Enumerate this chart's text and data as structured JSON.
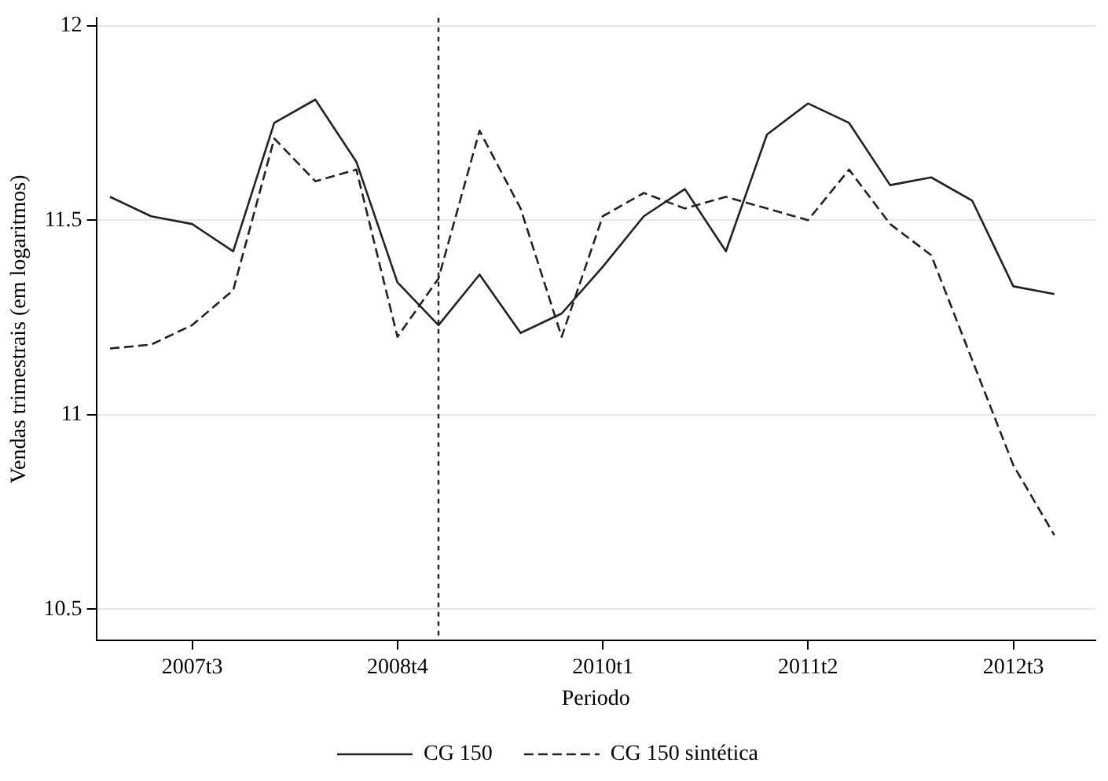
{
  "chart_data": {
    "type": "line",
    "xlabel": "Periodo",
    "ylabel": "Vendas trimestrais (em logaritmos)",
    "x": [
      "2007-01",
      "2007-04",
      "2007-07",
      "2007-10",
      "2008-01",
      "2008-04",
      "2008-07",
      "2008-10",
      "2009-01",
      "2009-04",
      "2009-07",
      "2009-10",
      "2010-01",
      "2010-04",
      "2010-07",
      "2010-10",
      "2011-01",
      "2011-04",
      "2011-07",
      "2011-10",
      "2012-01",
      "2012-04",
      "2012-07",
      "2012-10"
    ],
    "series": [
      {
        "name": "CG 150",
        "color": "#222222",
        "line_style": "solid",
        "values": [
          11.56,
          11.51,
          11.49,
          11.42,
          11.75,
          11.81,
          11.65,
          11.34,
          11.23,
          11.36,
          11.21,
          11.26,
          11.38,
          11.51,
          11.58,
          11.42,
          11.72,
          11.8,
          11.75,
          11.59,
          11.61,
          11.55,
          11.33,
          11.31
        ]
      },
      {
        "name": "CG 150 sintética",
        "color": "#222222",
        "line_style": "dashed",
        "values": [
          11.17,
          11.18,
          11.23,
          11.32,
          11.71,
          11.6,
          11.63,
          11.2,
          11.35,
          11.73,
          11.53,
          11.2,
          11.51,
          11.57,
          11.53,
          11.56,
          11.53,
          11.5,
          11.63,
          11.49,
          11.41,
          11.14,
          10.87,
          10.69
        ]
      }
    ],
    "xlim": [
      "2006-12",
      "2013-01"
    ],
    "xticks": [
      {
        "value": "2007-07",
        "label": "2007t3"
      },
      {
        "value": "2008-10",
        "label": "2008t4"
      },
      {
        "value": "2010-01",
        "label": "2010t1"
      },
      {
        "value": "2011-04",
        "label": "2011t2"
      },
      {
        "value": "2012-07",
        "label": "2012t3"
      }
    ],
    "ylim": [
      10.42,
      12.02
    ],
    "yticks": [
      10.5,
      11,
      11.5,
      12
    ],
    "ref_lines": [
      {
        "axis": "x",
        "value": "2009-01",
        "color": "#222222",
        "line_style": "dotted"
      }
    ],
    "grid": "y",
    "legend": "bottom",
    "marker": "none"
  }
}
